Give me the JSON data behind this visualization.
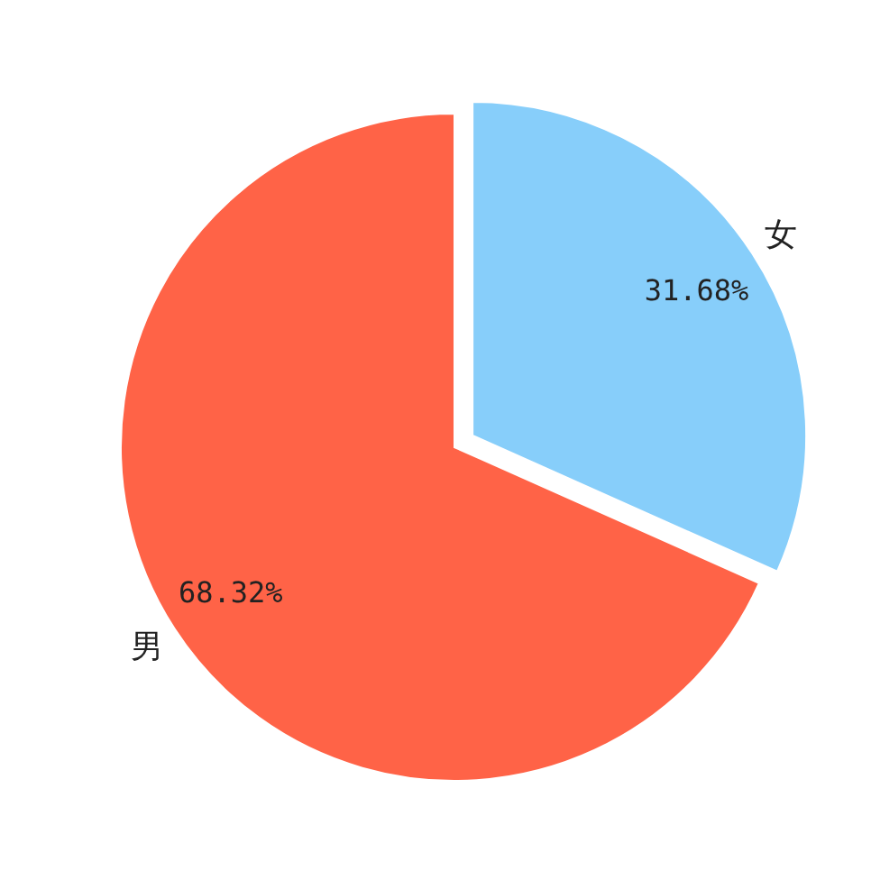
{
  "chart_data": {
    "type": "pie",
    "categories": [
      "男",
      "女"
    ],
    "values": [
      68.32,
      31.68
    ],
    "colors": [
      "#ff6347",
      "#87cefa"
    ],
    "value_labels": [
      "68.32%",
      "31.68%"
    ]
  }
}
